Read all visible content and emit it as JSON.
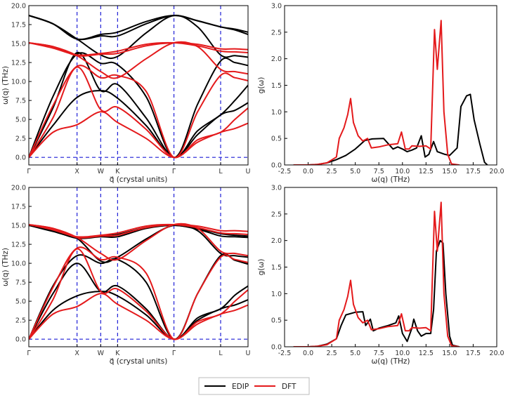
{
  "colors": {
    "edip": "#000000",
    "dft": "#e41a1c",
    "symmetry_line": "#1f1fd6"
  },
  "legend": {
    "entries": [
      {
        "label": "EDIP",
        "color": "#000000"
      },
      {
        "label": "DFT",
        "color": "#e41a1c"
      }
    ]
  },
  "chart_data": [
    {
      "id": "dispersion-top",
      "type": "line",
      "title": "",
      "xlabel": "q⃗ (crystal units)",
      "ylabel": "ω(q) (THz)",
      "xlim": [
        0,
        1
      ],
      "ylim": [
        -1,
        20
      ],
      "yticks": [
        0.0,
        2.5,
        5.0,
        7.5,
        10.0,
        12.5,
        15.0,
        17.5,
        20.0
      ],
      "high_symmetry_points": [
        {
          "label": "Γ",
          "x": 0.0
        },
        {
          "label": "X",
          "x": 0.22
        },
        {
          "label": "W",
          "x": 0.328
        },
        {
          "label": "K",
          "x": 0.405
        },
        {
          "label": "Γ",
          "x": 0.662
        },
        {
          "label": "L",
          "x": 0.875
        },
        {
          "label": "U",
          "x": 1.0
        }
      ],
      "x": [
        0.0,
        0.11,
        0.22,
        0.328,
        0.405,
        0.535,
        0.662,
        0.77,
        0.875,
        0.94,
        1.0
      ],
      "series": [
        {
          "name": "EDIP",
          "branch": 1,
          "values": [
            0.0,
            4.2,
            7.9,
            8.8,
            7.8,
            4.2,
            0.0,
            3.0,
            5.6,
            6.2,
            7.2
          ]
        },
        {
          "name": "EDIP",
          "branch": 2,
          "values": [
            0.0,
            6.5,
            13.8,
            8.8,
            9.6,
            5.2,
            0.0,
            3.5,
            5.6,
            7.5,
            9.5
          ]
        },
        {
          "name": "EDIP",
          "branch": 3,
          "values": [
            0.0,
            8.0,
            13.6,
            12.4,
            12.2,
            8.0,
            0.0,
            7.0,
            12.7,
            12.5,
            12.1
          ]
        },
        {
          "name": "EDIP",
          "branch": 4,
          "values": [
            18.7,
            17.6,
            15.6,
            16.0,
            16.0,
            17.6,
            18.7,
            18.0,
            17.2,
            16.8,
            16.2
          ]
        },
        {
          "name": "EDIP",
          "branch": 5,
          "values": [
            18.7,
            17.6,
            15.6,
            13.5,
            13.3,
            16.4,
            18.7,
            17.2,
            13.5,
            13.4,
            13.2
          ]
        },
        {
          "name": "EDIP",
          "branch": 6,
          "values": [
            18.7,
            17.6,
            15.6,
            16.2,
            16.5,
            17.9,
            18.7,
            18.0,
            17.2,
            16.9,
            16.5
          ]
        },
        {
          "name": "DFT",
          "branch": 1,
          "values": [
            0.0,
            3.3,
            4.3,
            6.0,
            4.6,
            2.5,
            0.0,
            2.0,
            3.3,
            3.8,
            4.5
          ]
        },
        {
          "name": "DFT",
          "branch": 2,
          "values": [
            0.0,
            5.2,
            11.9,
            6.3,
            6.6,
            3.7,
            0.0,
            2.3,
            3.3,
            5.0,
            6.5
          ]
        },
        {
          "name": "DFT",
          "branch": 3,
          "values": [
            0.0,
            6.8,
            12.0,
            10.5,
            10.8,
            8.7,
            0.0,
            6.0,
            10.8,
            10.5,
            10.1
          ]
        },
        {
          "name": "DFT",
          "branch": 4,
          "values": [
            15.1,
            14.6,
            13.4,
            11.3,
            10.5,
            13.0,
            15.1,
            14.6,
            11.6,
            11.3,
            11.0
          ]
        },
        {
          "name": "DFT",
          "branch": 5,
          "values": [
            15.1,
            14.6,
            13.4,
            13.6,
            13.7,
            14.7,
            15.1,
            14.9,
            14.3,
            14.3,
            14.2
          ]
        },
        {
          "name": "DFT",
          "branch": 6,
          "values": [
            15.1,
            14.4,
            13.5,
            13.7,
            14.0,
            14.9,
            15.1,
            14.7,
            14.0,
            13.9,
            13.8
          ]
        }
      ]
    },
    {
      "id": "dos-top",
      "type": "line",
      "title": "",
      "xlabel": "ω(q) (THz)",
      "ylabel": "g(ω)",
      "xlim": [
        -2.5,
        20
      ],
      "ylim": [
        0,
        3
      ],
      "xticks": [
        -2.5,
        0.0,
        2.5,
        5.0,
        7.5,
        10.0,
        12.5,
        15.0,
        17.5,
        20.0
      ],
      "yticks": [
        0.0,
        0.5,
        1.0,
        1.5,
        2.0,
        2.5,
        3.0
      ],
      "series": [
        {
          "name": "EDIP",
          "points": [
            [
              -1.5,
              0
            ],
            [
              0,
              0
            ],
            [
              1,
              0.01
            ],
            [
              2,
              0.04
            ],
            [
              3,
              0.1
            ],
            [
              4,
              0.18
            ],
            [
              5,
              0.3
            ],
            [
              6,
              0.46
            ],
            [
              6.8,
              0.49
            ],
            [
              8,
              0.5
            ],
            [
              8.5,
              0.4
            ],
            [
              9,
              0.3
            ],
            [
              9.5,
              0.34
            ],
            [
              10,
              0.3
            ],
            [
              10.5,
              0.25
            ],
            [
              11,
              0.28
            ],
            [
              11.5,
              0.32
            ],
            [
              12,
              0.55
            ],
            [
              12.4,
              0.15
            ],
            [
              12.8,
              0.2
            ],
            [
              13.3,
              0.44
            ],
            [
              13.7,
              0.25
            ],
            [
              14.5,
              0.2
            ],
            [
              15,
              0.18
            ],
            [
              15.8,
              0.32
            ],
            [
              16.2,
              1.1
            ],
            [
              16.8,
              1.3
            ],
            [
              17.2,
              1.33
            ],
            [
              17.6,
              0.85
            ],
            [
              18.2,
              0.4
            ],
            [
              18.7,
              0.05
            ],
            [
              19,
              0
            ]
          ]
        },
        {
          "name": "DFT",
          "points": [
            [
              -1.5,
              0
            ],
            [
              0,
              0
            ],
            [
              1,
              0.01
            ],
            [
              2,
              0.04
            ],
            [
              3,
              0.15
            ],
            [
              3.3,
              0.5
            ],
            [
              3.8,
              0.7
            ],
            [
              4.2,
              0.95
            ],
            [
              4.5,
              1.25
            ],
            [
              4.8,
              0.8
            ],
            [
              5.3,
              0.55
            ],
            [
              5.8,
              0.45
            ],
            [
              6.3,
              0.5
            ],
            [
              6.7,
              0.32
            ],
            [
              7.5,
              0.34
            ],
            [
              8.5,
              0.38
            ],
            [
              9.5,
              0.4
            ],
            [
              9.9,
              0.62
            ],
            [
              10.3,
              0.3
            ],
            [
              10.7,
              0.3
            ],
            [
              11,
              0.36
            ],
            [
              11.8,
              0.35
            ],
            [
              12.5,
              0.36
            ],
            [
              13,
              0.3
            ],
            [
              13.4,
              2.55
            ],
            [
              13.7,
              1.8
            ],
            [
              14.1,
              2.72
            ],
            [
              14.4,
              1.0
            ],
            [
              14.8,
              0.2
            ],
            [
              15.2,
              0.02
            ],
            [
              16,
              0
            ]
          ]
        }
      ]
    },
    {
      "id": "dispersion-bottom",
      "type": "line",
      "title": "",
      "xlabel": "q⃗ (crystal units)",
      "ylabel": "ω(q) (THz)",
      "xlim": [
        0,
        1
      ],
      "ylim": [
        -1,
        20
      ],
      "yticks": [
        0.0,
        2.5,
        5.0,
        7.5,
        10.0,
        12.5,
        15.0,
        17.5,
        20.0
      ],
      "high_symmetry_points": [
        {
          "label": "Γ",
          "x": 0.0
        },
        {
          "label": "X",
          "x": 0.22
        },
        {
          "label": "W",
          "x": 0.328
        },
        {
          "label": "K",
          "x": 0.405
        },
        {
          "label": "Γ",
          "x": 0.662
        },
        {
          "label": "L",
          "x": 0.875
        },
        {
          "label": "U",
          "x": 1.0
        }
      ],
      "x": [
        0.0,
        0.11,
        0.22,
        0.328,
        0.405,
        0.535,
        0.662,
        0.77,
        0.875,
        0.94,
        1.0
      ],
      "series": [
        {
          "name": "EDIP",
          "branch": 1,
          "values": [
            0.0,
            3.8,
            5.7,
            6.3,
            5.7,
            3.2,
            0.0,
            2.5,
            4.0,
            4.5,
            5.2
          ]
        },
        {
          "name": "EDIP",
          "branch": 2,
          "values": [
            0.0,
            6.0,
            10.0,
            6.3,
            7.0,
            4.0,
            0.0,
            2.8,
            4.0,
            5.8,
            7.0
          ]
        },
        {
          "name": "EDIP",
          "branch": 3,
          "values": [
            0.0,
            7.0,
            11.0,
            10.0,
            10.5,
            7.5,
            0.0,
            6.0,
            11.0,
            10.4,
            9.9
          ]
        },
        {
          "name": "EDIP",
          "branch": 4,
          "values": [
            15.0,
            14.3,
            13.3,
            10.3,
            10.8,
            13.2,
            15.0,
            14.3,
            11.3,
            11.0,
            10.8
          ]
        },
        {
          "name": "EDIP",
          "branch": 5,
          "values": [
            15.0,
            14.3,
            13.3,
            13.5,
            13.5,
            14.6,
            15.0,
            14.6,
            13.9,
            13.7,
            13.6
          ]
        },
        {
          "name": "EDIP",
          "branch": 6,
          "values": [
            15.0,
            14.2,
            13.4,
            13.6,
            13.8,
            14.7,
            15.0,
            14.5,
            13.6,
            13.5,
            13.4
          ]
        },
        {
          "name": "DFT",
          "branch": 1,
          "values": [
            0.0,
            3.3,
            4.3,
            6.0,
            4.6,
            2.5,
            0.0,
            2.0,
            3.3,
            3.8,
            4.5
          ]
        },
        {
          "name": "DFT",
          "branch": 2,
          "values": [
            0.0,
            5.2,
            11.9,
            6.3,
            6.6,
            3.7,
            0.0,
            2.3,
            3.3,
            5.0,
            6.5
          ]
        },
        {
          "name": "DFT",
          "branch": 3,
          "values": [
            0.0,
            6.8,
            12.0,
            10.5,
            10.8,
            8.7,
            0.0,
            6.0,
            10.8,
            10.5,
            10.1
          ]
        },
        {
          "name": "DFT",
          "branch": 4,
          "values": [
            15.1,
            14.6,
            13.4,
            11.3,
            10.5,
            13.0,
            15.1,
            14.6,
            11.6,
            11.3,
            11.0
          ]
        },
        {
          "name": "DFT",
          "branch": 5,
          "values": [
            15.1,
            14.6,
            13.4,
            13.6,
            13.7,
            14.7,
            15.1,
            14.9,
            14.3,
            14.3,
            14.2
          ]
        },
        {
          "name": "DFT",
          "branch": 6,
          "values": [
            15.1,
            14.4,
            13.5,
            13.7,
            14.0,
            14.9,
            15.1,
            14.7,
            14.0,
            13.9,
            13.8
          ]
        }
      ]
    },
    {
      "id": "dos-bottom",
      "type": "line",
      "title": "",
      "xlabel": "ω(q) (THz)",
      "ylabel": "g(ω)",
      "xlim": [
        -2.5,
        20
      ],
      "ylim": [
        0,
        3
      ],
      "xticks": [
        -2.5,
        0.0,
        2.5,
        5.0,
        7.5,
        10.0,
        12.5,
        15.0,
        17.5,
        20.0
      ],
      "yticks": [
        0.0,
        0.5,
        1.0,
        1.5,
        2.0,
        2.5,
        3.0
      ],
      "series": [
        {
          "name": "EDIP",
          "points": [
            [
              -1.5,
              0
            ],
            [
              0,
              0
            ],
            [
              1,
              0.01
            ],
            [
              2,
              0.05
            ],
            [
              3,
              0.15
            ],
            [
              3.5,
              0.4
            ],
            [
              4,
              0.6
            ],
            [
              5,
              0.65
            ],
            [
              5.8,
              0.66
            ],
            [
              6.1,
              0.4
            ],
            [
              6.6,
              0.52
            ],
            [
              6.9,
              0.3
            ],
            [
              7.5,
              0.35
            ],
            [
              8.5,
              0.4
            ],
            [
              9.3,
              0.45
            ],
            [
              9.6,
              0.58
            ],
            [
              10,
              0.25
            ],
            [
              10.5,
              0.1
            ],
            [
              11,
              0.35
            ],
            [
              11.2,
              0.52
            ],
            [
              11.6,
              0.3
            ],
            [
              12,
              0.2
            ],
            [
              12.5,
              0.25
            ],
            [
              13,
              0.25
            ],
            [
              13.3,
              0.7
            ],
            [
              13.6,
              1.8
            ],
            [
              14,
              2.0
            ],
            [
              14.3,
              1.95
            ],
            [
              14.6,
              1.0
            ],
            [
              15,
              0.2
            ],
            [
              15.3,
              0.03
            ],
            [
              16,
              0
            ]
          ]
        },
        {
          "name": "DFT",
          "points": [
            [
              -1.5,
              0
            ],
            [
              0,
              0
            ],
            [
              1,
              0.01
            ],
            [
              2,
              0.04
            ],
            [
              3,
              0.15
            ],
            [
              3.3,
              0.5
            ],
            [
              3.8,
              0.7
            ],
            [
              4.2,
              0.95
            ],
            [
              4.5,
              1.25
            ],
            [
              4.8,
              0.8
            ],
            [
              5.3,
              0.55
            ],
            [
              5.8,
              0.45
            ],
            [
              6.3,
              0.5
            ],
            [
              6.7,
              0.32
            ],
            [
              7.5,
              0.34
            ],
            [
              8.5,
              0.38
            ],
            [
              9.5,
              0.4
            ],
            [
              9.9,
              0.62
            ],
            [
              10.3,
              0.3
            ],
            [
              10.7,
              0.3
            ],
            [
              11,
              0.36
            ],
            [
              11.8,
              0.35
            ],
            [
              12.5,
              0.36
            ],
            [
              13,
              0.3
            ],
            [
              13.4,
              2.55
            ],
            [
              13.7,
              1.8
            ],
            [
              14.1,
              2.72
            ],
            [
              14.4,
              1.0
            ],
            [
              14.8,
              0.2
            ],
            [
              15.2,
              0.02
            ],
            [
              16,
              0
            ]
          ]
        }
      ]
    }
  ]
}
